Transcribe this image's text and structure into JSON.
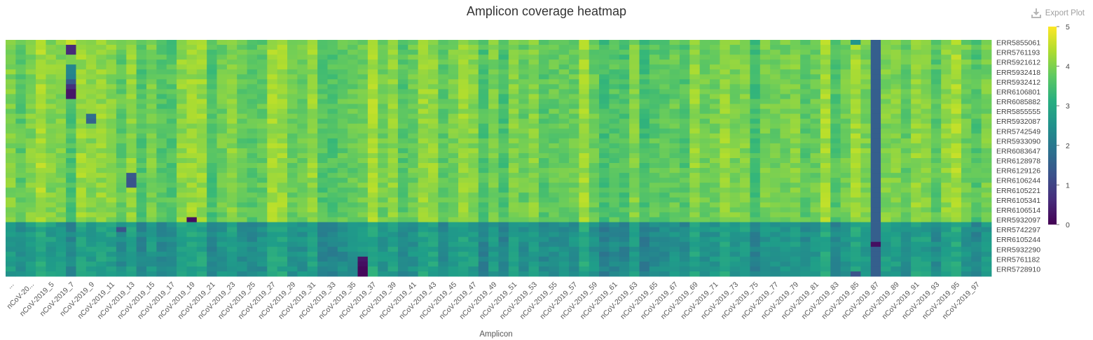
{
  "chart_data": {
    "type": "heatmap",
    "title": "Amplicon coverage heatmap",
    "xlabel": "Amplicon",
    "ylabel": "",
    "colorscale": "viridis",
    "colorbar": {
      "min": 0,
      "max": 5,
      "ticks": [
        "0",
        "1",
        "2",
        "3",
        "4",
        "5"
      ]
    },
    "x_tick_labels": [
      "...",
      "nCoV-20...",
      "nCoV-2019_5",
      "nCoV-2019_7",
      "nCoV-2019_9",
      "nCoV-2019_11",
      "nCoV-2019_13",
      "nCoV-2019_15",
      "nCoV-2019_17",
      "nCoV-2019_19",
      "nCoV-2019_21",
      "nCoV-2019_23",
      "nCoV-2019_25",
      "nCoV-2019_27",
      "nCoV-2019_29",
      "nCoV-2019_31",
      "nCoV-2019_33",
      "nCoV-2019_35",
      "nCoV-2019_37",
      "nCoV-2019_39",
      "nCoV-2019_41",
      "nCoV-2019_43",
      "nCoV-2019_45",
      "nCoV-2019_47",
      "nCoV-2019_49",
      "nCoV-2019_51",
      "nCoV-2019_53",
      "nCoV-2019_55",
      "nCoV-2019_57",
      "nCoV-2019_59",
      "nCoV-2019_61",
      "nCoV-2019_63",
      "nCoV-2019_65",
      "nCoV-2019_67",
      "nCoV-2019_69",
      "nCoV-2019_71",
      "nCoV-2019_73",
      "nCoV-2019_75",
      "nCoV-2019_77",
      "nCoV-2019_79",
      "nCoV-2019_81",
      "nCoV-2019_83",
      "nCoV-2019_85",
      "nCoV-2019_87",
      "nCoV-2019_89",
      "nCoV-2019_91",
      "nCoV-2019_93",
      "nCoV-2019_95",
      "nCoV-2019_97"
    ],
    "n_columns": 98,
    "rows": [
      "ERR5855061",
      "ERR5761193",
      "ERR5921612",
      "ERR5932418",
      "ERR5932412",
      "ERR6106801",
      "ERR6085882",
      "ERR5855555",
      "ERR5932087",
      "ERR5742549",
      "ERR5933090",
      "ERR6083647",
      "ERR6128978",
      "ERR6129126",
      "ERR6106244",
      "ERR6105221",
      "ERR6105341",
      "ERR6106514",
      "ERR5932097",
      "ERR5742297",
      "ERR6105244",
      "ERR5932290",
      "ERR5761182",
      "ERR5728910"
    ],
    "n_rows": 48,
    "row_label_every": 2,
    "typical_value_upper_rows": 3.9,
    "typical_value_lower_rows": 2.6,
    "low_coverage_columns": [
      {
        "column": 6,
        "values_by_row": {
          "0": 4.6,
          "1": 0.6,
          "2": 0.6,
          "3": 4.0,
          "4": 4.0,
          "5": 2.3,
          "6": 2.3,
          "7": 2.2,
          "8": 1.4,
          "9": 0.7,
          "10": 0.3,
          "11": 0.3
        }
      },
      {
        "column": 8,
        "values_by_row": {
          "15": 1.8,
          "16": 1.6
        }
      },
      {
        "column": 11,
        "values_by_row": {
          "38": 1.3
        }
      },
      {
        "column": 12,
        "values_by_row": {
          "27": 1.4,
          "28": 1.3,
          "29": 1.3
        }
      },
      {
        "column": 18,
        "values_by_row": {
          "36": 0.2
        }
      },
      {
        "column": 35,
        "values_by_row": {
          "44": 0.3,
          "45": 0.2,
          "46": 0.1,
          "47": 0.1
        }
      },
      {
        "column": 84,
        "values_by_row": {
          "0": 2.6,
          "47": 1.3
        }
      },
      {
        "column": 86,
        "values_by_row": {
          "all": 1.5,
          "41": 0.2
        }
      }
    ]
  }
}
